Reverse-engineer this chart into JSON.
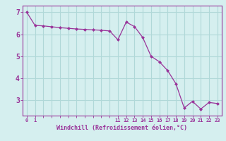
{
  "x": [
    0,
    1,
    2,
    3,
    4,
    5,
    6,
    7,
    8,
    9,
    10,
    11,
    12,
    13,
    14,
    15,
    16,
    17,
    18,
    19,
    20,
    21,
    22,
    23
  ],
  "y": [
    7.0,
    6.4,
    6.38,
    6.34,
    6.3,
    6.27,
    6.24,
    6.22,
    6.2,
    6.18,
    6.15,
    5.75,
    6.55,
    6.35,
    5.85,
    5.0,
    4.75,
    4.35,
    3.75,
    2.65,
    2.95,
    2.6,
    2.9,
    2.85
  ],
  "line_color": "#993399",
  "marker": "D",
  "marker_size": 2.5,
  "bg_color": "#d5efef",
  "grid_color": "#b0d8d8",
  "xlabel": "Windchill (Refroidissement éolien,°C)",
  "xtick_labels_show": [
    0,
    1,
    11,
    12,
    13,
    14,
    15,
    16,
    17,
    18,
    19,
    20,
    21,
    22,
    23
  ],
  "yticks": [
    3,
    4,
    5,
    6,
    7
  ],
  "ylim": [
    2.3,
    7.3
  ],
  "xlim": [
    -0.5,
    23.5
  ],
  "tick_color": "#993399",
  "label_color": "#993399"
}
